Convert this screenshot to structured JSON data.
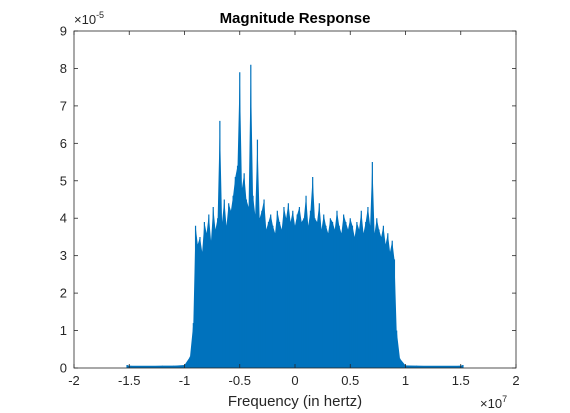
{
  "chart_data": {
    "type": "bar",
    "title": "Magnitude Response",
    "xlabel": "Frequency (in hertz)",
    "ylabel": "",
    "x_multiplier": {
      "base": "×10",
      "exp": "7"
    },
    "y_multiplier": {
      "base": "×10",
      "exp": "-5"
    },
    "xlim": [
      -2,
      2
    ],
    "ylim": [
      0,
      9
    ],
    "x_ticks": [
      "-2",
      "-1.5",
      "-1",
      "-0.5",
      "0",
      "0.5",
      "1",
      "1.5",
      "2"
    ],
    "y_ticks": [
      "0",
      "1",
      "2",
      "3",
      "4",
      "5",
      "6",
      "7",
      "8",
      "9"
    ],
    "grid": false,
    "bar_color": "#0072BD",
    "series": [
      {
        "x": [
          -1.52,
          -1.5,
          -1.45,
          -1.4,
          -1.3,
          -1.2,
          -1.1,
          -1.0,
          -0.95,
          -0.92,
          -0.9,
          -0.88,
          -0.86,
          -0.84,
          -0.82,
          -0.8,
          -0.78,
          -0.76,
          -0.74,
          -0.72,
          -0.7,
          -0.68,
          -0.66,
          -0.64,
          -0.62,
          -0.6,
          -0.58,
          -0.56,
          -0.54,
          -0.52,
          -0.5,
          -0.48,
          -0.46,
          -0.44,
          -0.42,
          -0.4,
          -0.38,
          -0.36,
          -0.34,
          -0.32,
          -0.3,
          -0.28,
          -0.26,
          -0.24,
          -0.22,
          -0.2,
          -0.18,
          -0.16,
          -0.14,
          -0.12,
          -0.1,
          -0.08,
          -0.06,
          -0.04,
          -0.02,
          0.0,
          0.02,
          0.04,
          0.06,
          0.08,
          0.1,
          0.12,
          0.14,
          0.16,
          0.18,
          0.2,
          0.22,
          0.24,
          0.26,
          0.28,
          0.3,
          0.32,
          0.34,
          0.36,
          0.38,
          0.4,
          0.42,
          0.44,
          0.46,
          0.48,
          0.5,
          0.52,
          0.54,
          0.56,
          0.58,
          0.6,
          0.62,
          0.64,
          0.66,
          0.68,
          0.7,
          0.72,
          0.74,
          0.76,
          0.78,
          0.8,
          0.82,
          0.84,
          0.86,
          0.88,
          0.9,
          0.92,
          0.95,
          1.0,
          1.1,
          1.2,
          1.3,
          1.4,
          1.45,
          1.5,
          1.52
        ],
        "values": [
          0.08,
          0.06,
          0.05,
          0.05,
          0.05,
          0.06,
          0.06,
          0.08,
          0.3,
          1.2,
          3.8,
          3.3,
          3.5,
          3.1,
          3.9,
          3.6,
          4.1,
          3.4,
          4.3,
          3.7,
          4.0,
          6.6,
          3.9,
          4.5,
          3.8,
          4.4,
          4.2,
          4.6,
          5.1,
          5.4,
          7.9,
          4.8,
          5.2,
          4.5,
          4.3,
          8.1,
          4.6,
          4.1,
          6.1,
          4.0,
          4.2,
          4.5,
          3.7,
          3.9,
          4.1,
          3.8,
          3.6,
          4.2,
          3.9,
          3.7,
          4.3,
          4.0,
          4.4,
          3.9,
          4.2,
          3.8,
          4.1,
          4.3,
          3.9,
          4.0,
          4.6,
          3.8,
          4.2,
          5.1,
          4.0,
          3.9,
          4.4,
          3.7,
          4.1,
          3.8,
          3.6,
          4.0,
          3.9,
          3.7,
          4.2,
          3.8,
          3.6,
          4.1,
          3.9,
          3.7,
          4.0,
          3.8,
          3.5,
          3.9,
          3.7,
          4.2,
          3.6,
          3.9,
          4.3,
          3.8,
          5.5,
          3.6,
          4.0,
          3.7,
          3.5,
          3.8,
          3.3,
          3.6,
          3.1,
          3.4,
          2.9,
          1.0,
          0.25,
          0.07,
          0.06,
          0.05,
          0.05,
          0.05,
          0.05,
          0.06,
          0.08
        ]
      }
    ]
  }
}
